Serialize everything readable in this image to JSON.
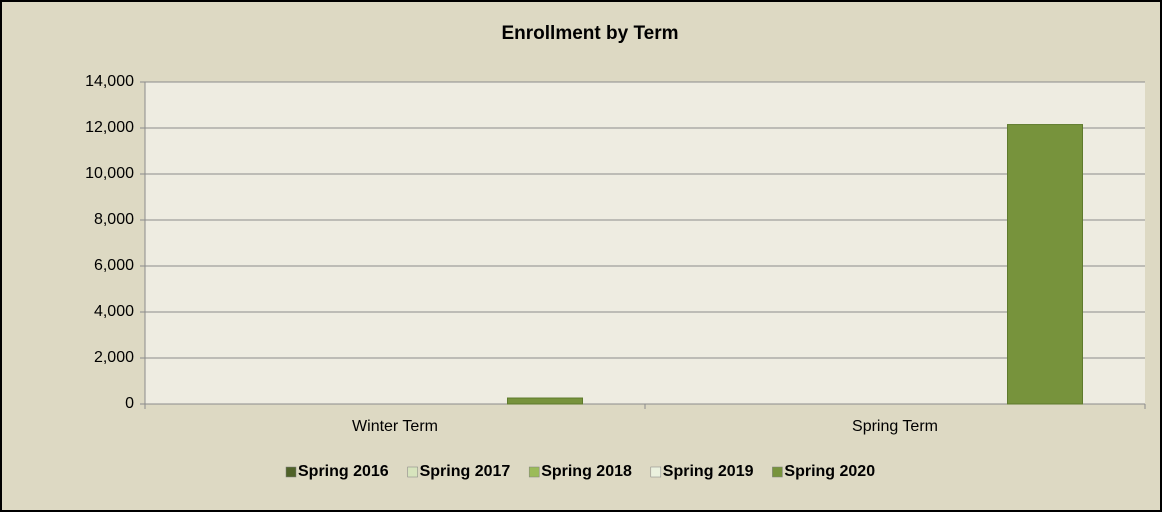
{
  "chart_data": {
    "type": "bar",
    "title": "Enrollment by Term",
    "categories": [
      "Winter Term",
      "Spring Term"
    ],
    "series": [
      {
        "name": "Spring 2016",
        "color": "#4f6228",
        "values": [
          0,
          0
        ]
      },
      {
        "name": "Spring 2017",
        "color": "#d7e4bd",
        "values": [
          0,
          0
        ]
      },
      {
        "name": "Spring 2018",
        "color": "#9bbb59",
        "values": [
          0,
          0
        ]
      },
      {
        "name": "Spring 2019",
        "color": "#ebf1de",
        "values": [
          0,
          0
        ]
      },
      {
        "name": "Spring 2020",
        "color": "#77933c",
        "values": [
          260,
          12150
        ]
      }
    ],
    "ylim": [
      0,
      14000
    ],
    "yticks": [
      0,
      {
        "value": 2000,
        "label": "2,000"
      },
      {
        "value": 4000,
        "label": "4,000"
      },
      {
        "value": 6000,
        "label": "6,000"
      },
      {
        "value": 8000,
        "label": "8,000"
      },
      {
        "value": 10000,
        "label": "10,000"
      },
      {
        "value": 12000,
        "label": "12,000"
      },
      {
        "value": 14000,
        "label": "14,000"
      }
    ],
    "grid": true,
    "legend": "bottom"
  }
}
